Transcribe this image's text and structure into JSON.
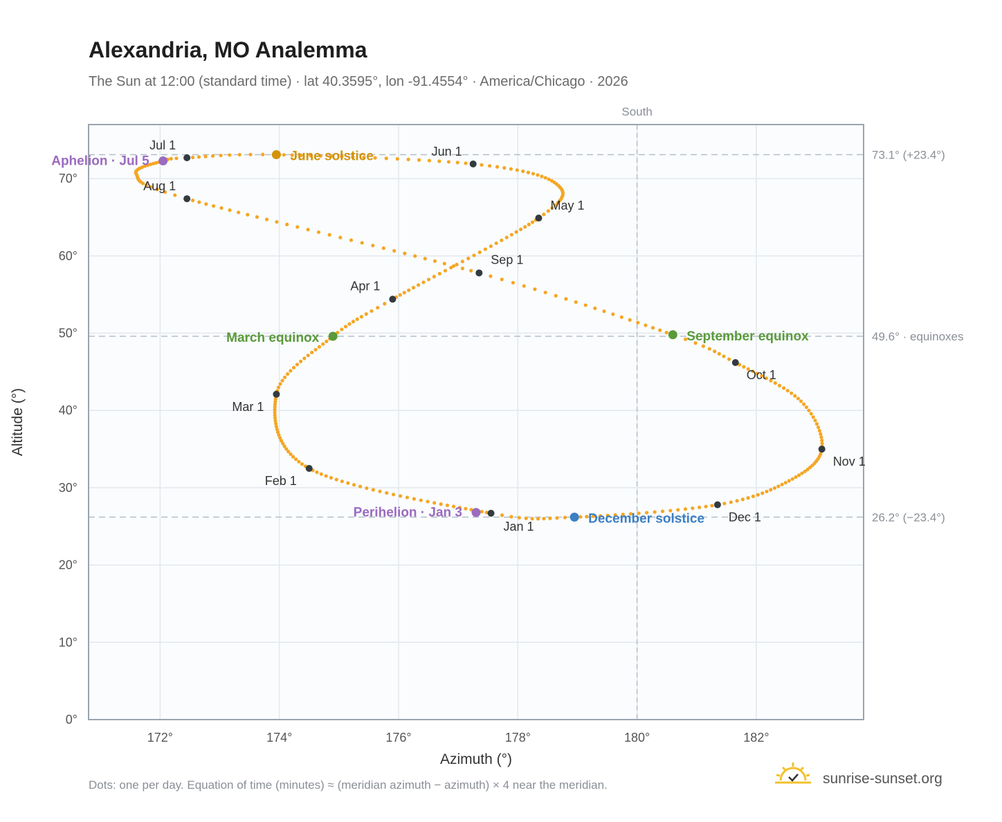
{
  "title": "Alexandria, MO Analemma",
  "subtitle": "The Sun at 12:00 (standard time) · lat 40.3595°, lon -91.4554° · America/Chicago · 2026",
  "footnote": "Dots: one per day. Equation of time (minutes) ≈ (meridian azimuth − azimuth) × 4 near the meridian.",
  "brand": {
    "text": "sunrise-sunset.org",
    "icon": "sun-check-icon",
    "color": "#f2c12e"
  },
  "chart_data": {
    "type": "scatter",
    "xlabel": "Azimuth (°)",
    "ylabel": "Altitude (°)",
    "xlim": [
      170.8,
      183.8
    ],
    "ylim": [
      0,
      77
    ],
    "x_ticks": [
      172,
      174,
      176,
      178,
      180,
      182
    ],
    "x_tick_labels": [
      "172°",
      "174°",
      "176°",
      "178°",
      "180°",
      "182°"
    ],
    "y_ticks": [
      0,
      10,
      20,
      30,
      40,
      50,
      60,
      70
    ],
    "y_tick_labels": [
      "0°",
      "10°",
      "20°",
      "30°",
      "40°",
      "50°",
      "60°",
      "70°"
    ],
    "grid": true,
    "colors": {
      "path": "#f5a623",
      "month": "#333a40",
      "march": "#5a9a3a",
      "june": "#d4930a",
      "september": "#5a9a3a",
      "december": "#3b7fc4",
      "aphelion": "#9b6bbf",
      "perihelion": "#9b6bbf",
      "reference": "#b5bec8"
    },
    "vertical_reference": {
      "x": 180,
      "label": "South"
    },
    "horizontal_references": [
      {
        "y": 73.1,
        "label": "73.1° (+23.4°)"
      },
      {
        "y": 49.6,
        "label": "49.6° · equinoxes"
      },
      {
        "y": 26.2,
        "label": "26.2° (−23.4°)"
      }
    ],
    "path_keypoints": [
      {
        "day": 1,
        "x": 177.55,
        "y": 26.7
      },
      {
        "day": 32,
        "x": 174.5,
        "y": 32.5
      },
      {
        "day": 60,
        "x": 173.95,
        "y": 42.1
      },
      {
        "day": 79,
        "x": 174.9,
        "y": 49.6
      },
      {
        "day": 91,
        "x": 175.9,
        "y": 54.4
      },
      {
        "day": 121,
        "x": 178.35,
        "y": 64.9
      },
      {
        "day": 136,
        "x": 178.65,
        "y": 69.3
      },
      {
        "day": 152,
        "x": 177.25,
        "y": 71.9
      },
      {
        "day": 172,
        "x": 173.95,
        "y": 73.1
      },
      {
        "day": 182,
        "x": 172.45,
        "y": 72.7
      },
      {
        "day": 186,
        "x": 172.05,
        "y": 72.3
      },
      {
        "day": 200,
        "x": 171.6,
        "y": 70.6
      },
      {
        "day": 213,
        "x": 172.45,
        "y": 67.4
      },
      {
        "day": 244,
        "x": 177.35,
        "y": 57.8
      },
      {
        "day": 265,
        "x": 180.6,
        "y": 49.8
      },
      {
        "day": 274,
        "x": 181.65,
        "y": 46.2
      },
      {
        "day": 290,
        "x": 182.75,
        "y": 41.2
      },
      {
        "day": 305,
        "x": 183.1,
        "y": 35.0
      },
      {
        "day": 320,
        "x": 182.55,
        "y": 30.9
      },
      {
        "day": 335,
        "x": 181.35,
        "y": 27.8
      },
      {
        "day": 355,
        "x": 178.95,
        "y": 26.2
      },
      {
        "day": 366,
        "x": 177.55,
        "y": 26.7
      }
    ],
    "month_markers": [
      {
        "label": "Jan 1",
        "x": 177.55,
        "y": 26.7
      },
      {
        "label": "Feb 1",
        "x": 174.5,
        "y": 32.5
      },
      {
        "label": "Mar 1",
        "x": 173.95,
        "y": 42.1
      },
      {
        "label": "Apr 1",
        "x": 175.9,
        "y": 54.4
      },
      {
        "label": "May 1",
        "x": 178.35,
        "y": 64.9
      },
      {
        "label": "Jun 1",
        "x": 177.25,
        "y": 71.9
      },
      {
        "label": "Jul 1",
        "x": 172.45,
        "y": 72.7
      },
      {
        "label": "Aug 1",
        "x": 172.45,
        "y": 67.4
      },
      {
        "label": "Sep 1",
        "x": 177.35,
        "y": 57.8
      },
      {
        "label": "Oct 1",
        "x": 181.65,
        "y": 46.2
      },
      {
        "label": "Nov 1",
        "x": 183.1,
        "y": 35.0
      },
      {
        "label": "Dec 1",
        "x": 181.35,
        "y": 27.8
      }
    ],
    "events": [
      {
        "label": "March equinox",
        "x": 174.9,
        "y": 49.6,
        "color": "#5a9a3a"
      },
      {
        "label": "June solstice",
        "x": 173.95,
        "y": 73.1,
        "color": "#d4930a"
      },
      {
        "label": "September equinox",
        "x": 180.6,
        "y": 49.8,
        "color": "#5a9a3a"
      },
      {
        "label": "December solstice",
        "x": 178.95,
        "y": 26.2,
        "color": "#3b7fc4"
      },
      {
        "label": "Aphelion · Jul 5",
        "x": 172.05,
        "y": 72.3,
        "color": "#9b6bbf"
      },
      {
        "label": "Perihelion · Jan 3",
        "x": 177.3,
        "y": 26.8,
        "color": "#9b6bbf"
      }
    ]
  }
}
